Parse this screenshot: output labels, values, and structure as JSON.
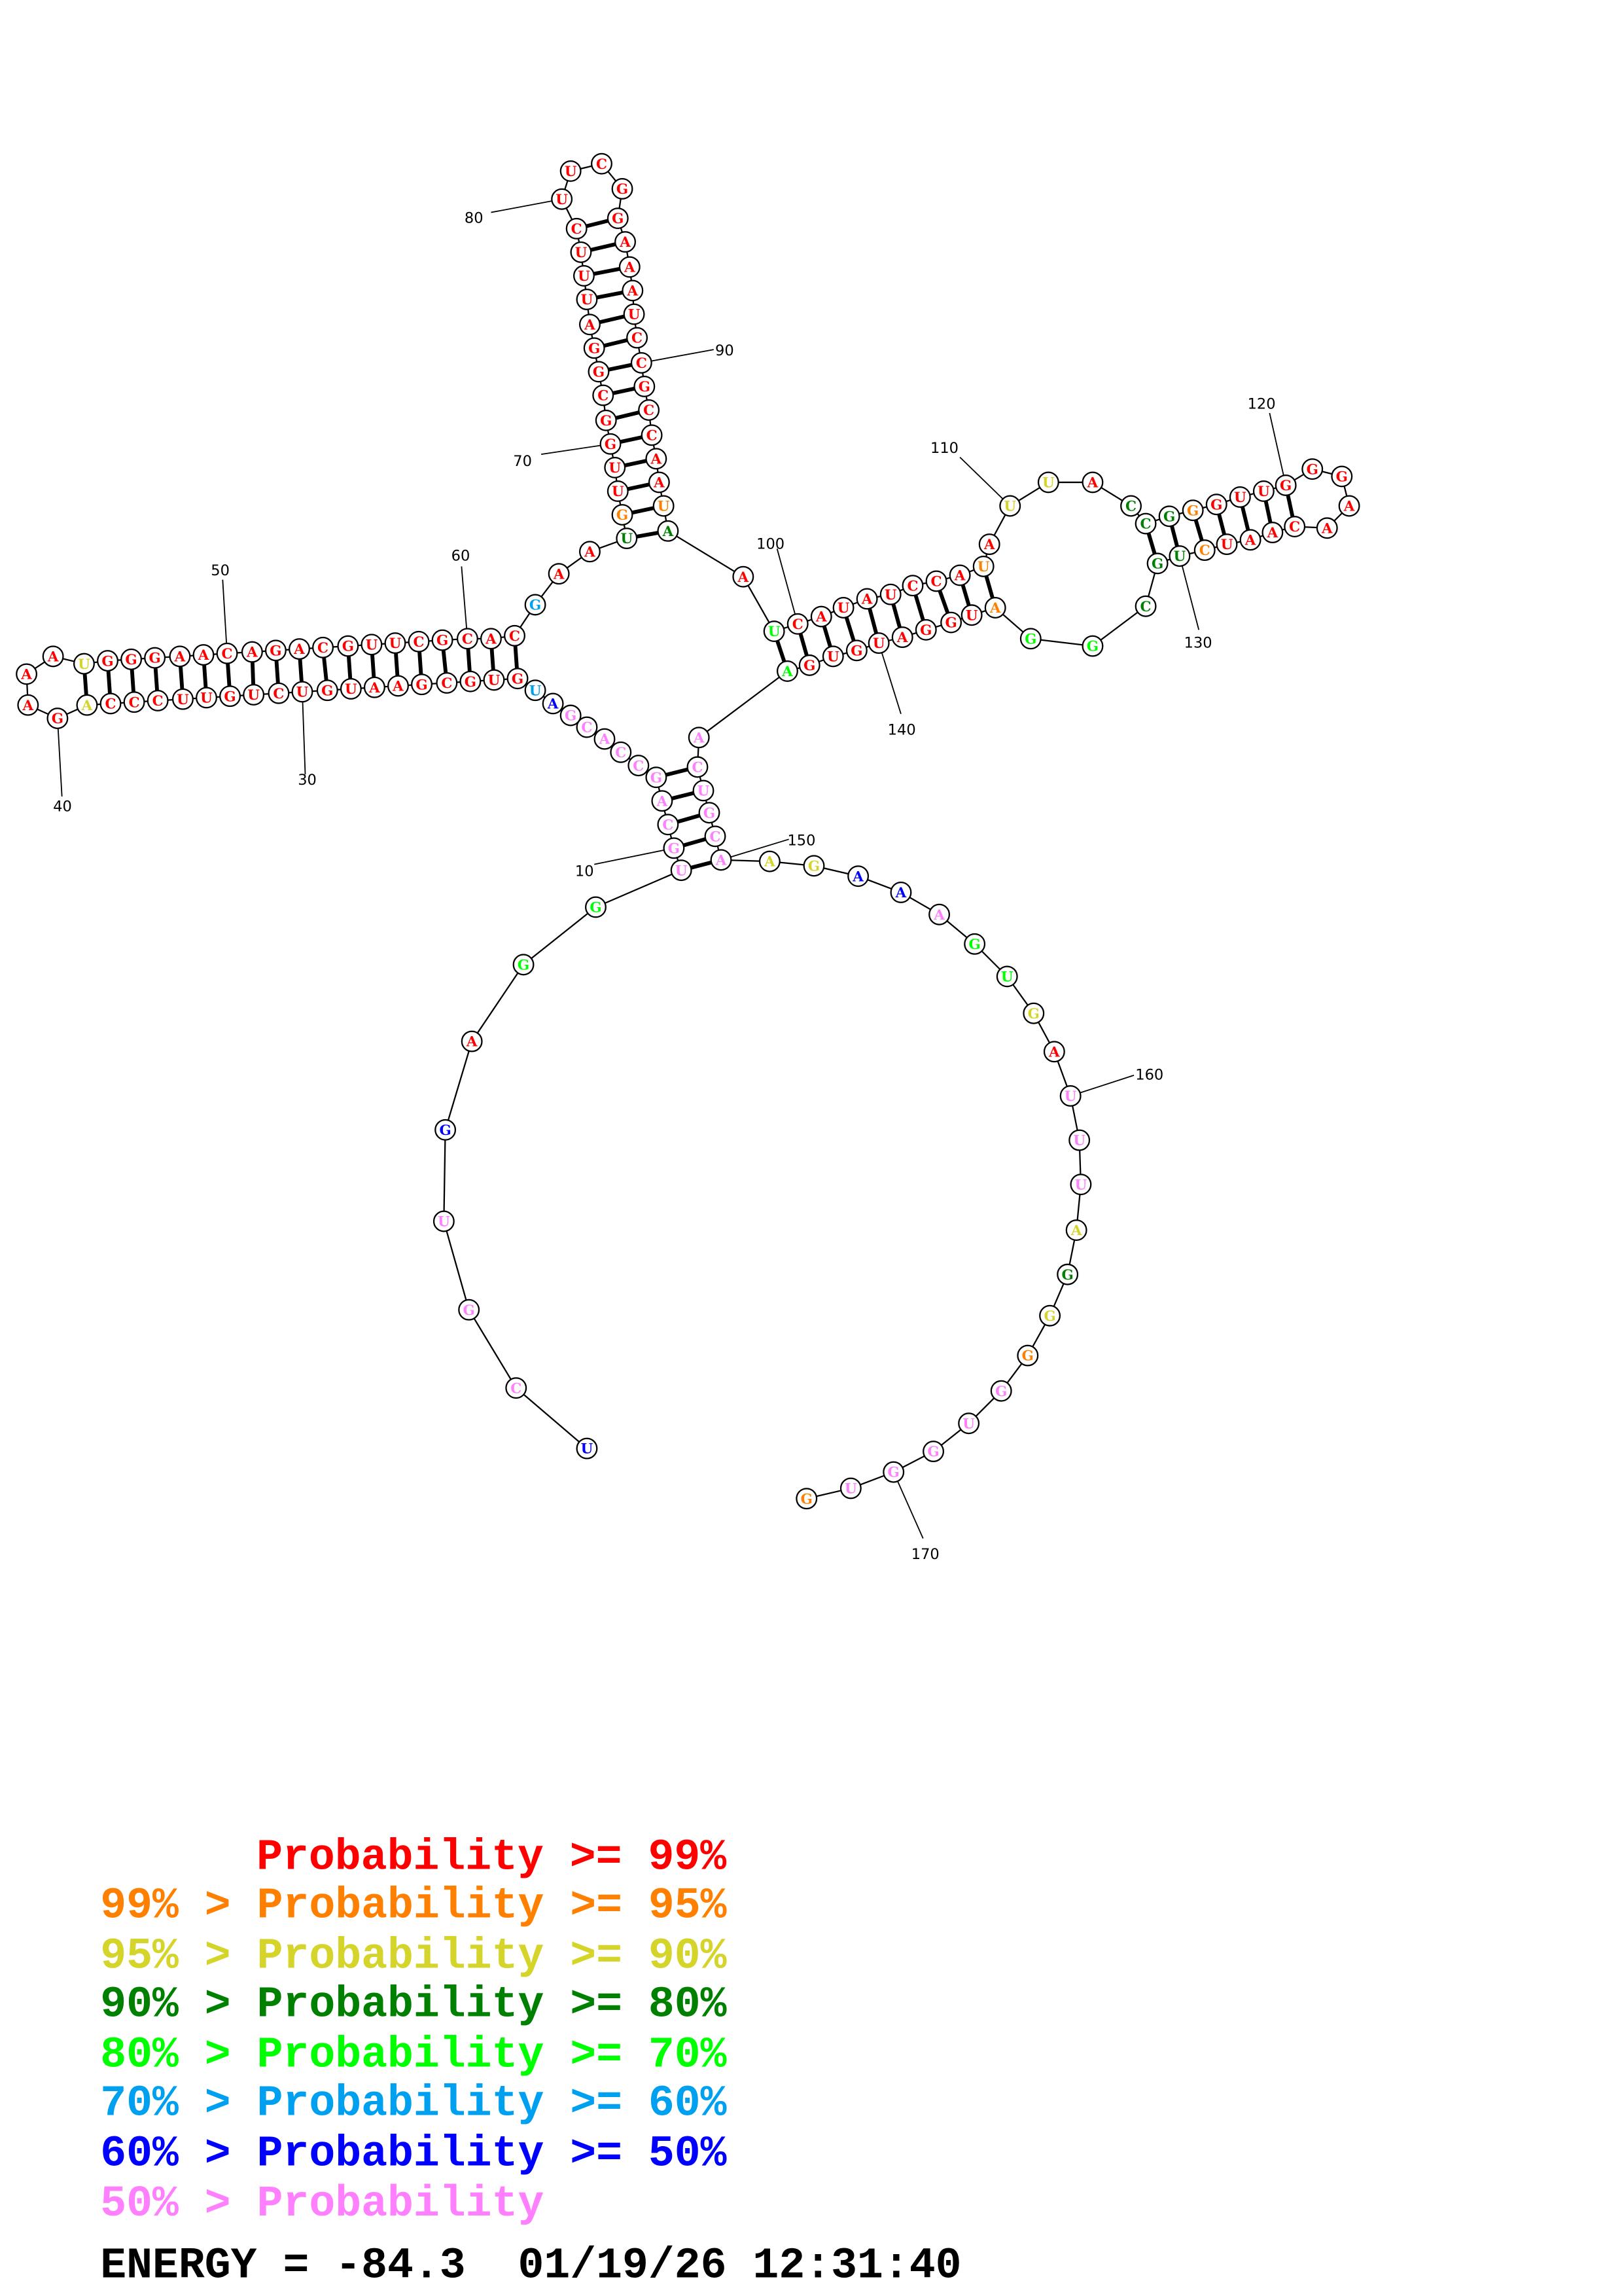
{
  "structure": {
    "sequence": "UCGUGAGGUGCAGCCACGAUGUGCGAAUGUCUGUUCCCAGAAAUGGGAACAGACGUUCGCACGAAUGUUGGCGGAUUUCUUCGGAAAUCCGCCAAUAAUCAUAUCCAUAUUACCGGGUUGGGAACAAUCUGCGGAUGGAUGUGAACUGCAAGAAAGUGAUUUAGGGGUGGUG",
    "probability_classes": "BPPPBRLLPPPPPPPPPPBCRRRRRRRRRRRRRRRRRRYRRRRYRRRRRRRRRRRRRRRRRRCRRDORRRRRRRRRRRRRRRRRRRRRRRRRRRRODRLRRRRRRRRORYYRDDDORRRRRRRRRRRRODDDLLORRRRRRRRLPPPPPPYYBBPLLYRPPPYDYOPPPPPO",
    "class_colors": {
      "R": "#ff0000",
      "O": "#ff8000",
      "Y": "#d4d42a",
      "D": "#008000",
      "L": "#00ff00",
      "C": "#00a0f0",
      "B": "#0000ff",
      "P": "#ff80ff"
    },
    "pairs": [
      [
        9,
        150
      ],
      [
        10,
        149
      ],
      [
        11,
        148
      ],
      [
        12,
        147
      ],
      [
        13,
        146
      ],
      [
        21,
        62
      ],
      [
        22,
        61
      ],
      [
        23,
        60
      ],
      [
        24,
        59
      ],
      [
        25,
        58
      ],
      [
        26,
        57
      ],
      [
        27,
        56
      ],
      [
        28,
        55
      ],
      [
        29,
        54
      ],
      [
        30,
        53
      ],
      [
        31,
        52
      ],
      [
        32,
        51
      ],
      [
        33,
        50
      ],
      [
        34,
        49
      ],
      [
        35,
        48
      ],
      [
        36,
        47
      ],
      [
        37,
        46
      ],
      [
        38,
        45
      ],
      [
        39,
        44
      ],
      [
        66,
        97
      ],
      [
        67,
        96
      ],
      [
        68,
        95
      ],
      [
        69,
        94
      ],
      [
        70,
        93
      ],
      [
        71,
        92
      ],
      [
        72,
        91
      ],
      [
        73,
        90
      ],
      [
        74,
        89
      ],
      [
        75,
        88
      ],
      [
        76,
        87
      ],
      [
        77,
        86
      ],
      [
        78,
        85
      ],
      [
        79,
        84
      ],
      [
        99,
        144
      ],
      [
        100,
        143
      ],
      [
        101,
        142
      ],
      [
        102,
        141
      ],
      [
        103,
        140
      ],
      [
        104,
        139
      ],
      [
        105,
        138
      ],
      [
        106,
        137
      ],
      [
        107,
        136
      ],
      [
        108,
        135
      ],
      [
        114,
        131
      ],
      [
        115,
        130
      ],
      [
        116,
        129
      ],
      [
        117,
        128
      ],
      [
        118,
        127
      ],
      [
        119,
        126
      ],
      [
        120,
        125
      ]
    ],
    "position_labels": [
      "10",
      "30",
      "40",
      "50",
      "60",
      "70",
      "80",
      "90",
      "100",
      "110",
      "120",
      "130",
      "140",
      "150",
      "160",
      "170"
    ]
  },
  "legend": {
    "lines": [
      {
        "text": "Probability >= 99%",
        "color": "#ff0000"
      },
      {
        "text": "99% > Probability >= 95%",
        "color": "#ff8000"
      },
      {
        "text": "95% > Probability >= 90%",
        "color": "#d4d42a"
      },
      {
        "text": "90% > Probability >= 80%",
        "color": "#008000"
      },
      {
        "text": "80% > Probability >= 70%",
        "color": "#00ff00"
      },
      {
        "text": "70% > Probability >= 60%",
        "color": "#00a0f0"
      },
      {
        "text": "60% > Probability >= 50%",
        "color": "#0000ff"
      },
      {
        "text": "50% > Probability",
        "color": "#ff80ff"
      }
    ],
    "energy_line": "ENERGY = -84.3  01/19/26 12:31:40"
  }
}
